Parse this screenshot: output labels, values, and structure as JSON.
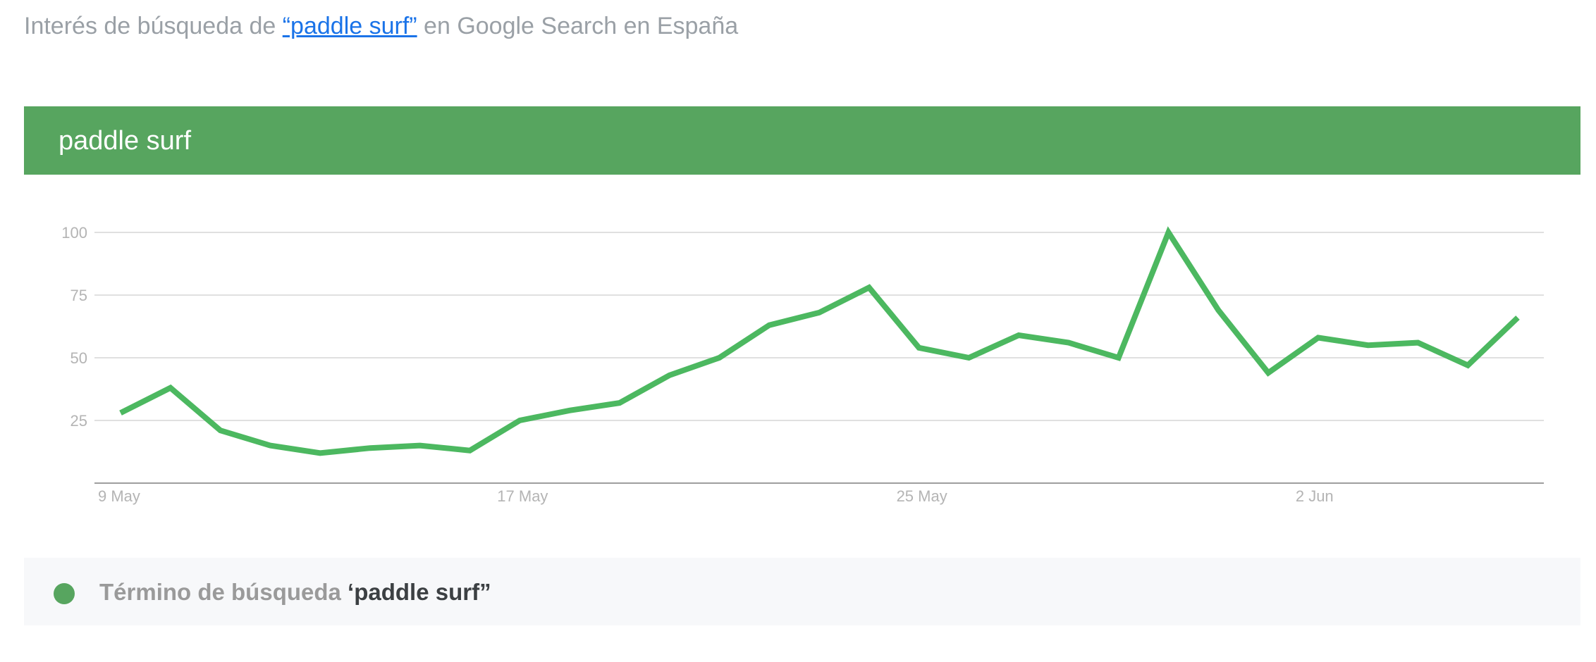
{
  "header": {
    "prefix": "Interés de búsqueda de ",
    "query_link": "“paddle surf”",
    "suffix": " en Google Search en España"
  },
  "banner": {
    "title": "paddle surf",
    "color": "#57a55f"
  },
  "legend": {
    "label": "Término de búsqueda ",
    "term": "‘paddle surf”",
    "dot_color": "#57a55f"
  },
  "colors": {
    "line": "#4cb860",
    "grid": "#e0e0e0",
    "axis": "#9e9e9e",
    "tick_text": "#b4b4b4",
    "link": "#1a73e8"
  },
  "chart_data": {
    "type": "line",
    "title": "",
    "xlabel": "",
    "ylabel": "",
    "x": [
      "9 May",
      "10 May",
      "11 May",
      "12 May",
      "13 May",
      "14 May",
      "15 May",
      "16 May",
      "17 May",
      "18 May",
      "19 May",
      "20 May",
      "21 May",
      "22 May",
      "23 May",
      "24 May",
      "25 May",
      "26 May",
      "27 May",
      "28 May",
      "29 May",
      "30 May",
      "31 May",
      "1 Jun",
      "2 Jun",
      "3 Jun",
      "4 Jun",
      "5 Jun",
      "6 Jun"
    ],
    "series": [
      {
        "name": "paddle surf",
        "values": [
          28,
          38,
          21,
          15,
          12,
          14,
          15,
          13,
          25,
          29,
          32,
          43,
          50,
          63,
          68,
          78,
          54,
          50,
          59,
          56,
          50,
          100,
          69,
          44,
          58,
          55,
          56,
          47,
          66
        ]
      }
    ],
    "x_ticks": [
      {
        "index": 0,
        "label": "9 May"
      },
      {
        "index": 8,
        "label": "17 May"
      },
      {
        "index": 16,
        "label": "25 May"
      },
      {
        "index": 24,
        "label": "2 Jun"
      }
    ],
    "y_ticks": [
      25,
      50,
      75,
      100
    ],
    "ylim": [
      0,
      100
    ],
    "grid": true,
    "legend_position": "bottom"
  }
}
